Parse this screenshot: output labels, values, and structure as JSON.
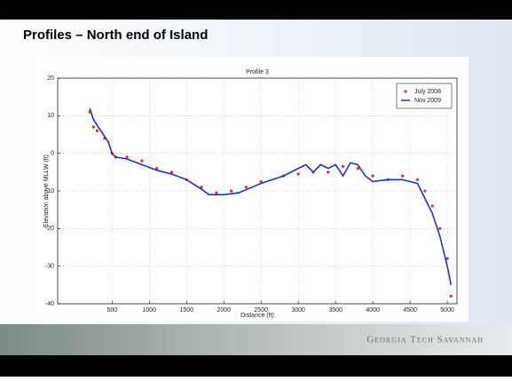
{
  "slide": {
    "title": "Profiles – North end of Island",
    "footer": "Georgia Tech Savannah"
  },
  "chart_data": {
    "type": "line",
    "title": "Profile 3",
    "x_label": "Distance (ft)",
    "y_label": "Elevation above MLLW (ft)",
    "xlim": [
      -230,
      5130
    ],
    "xticks": [
      500,
      1000,
      1500,
      2000,
      2500,
      3000,
      3500,
      4000,
      4500,
      5000
    ],
    "ylim": [
      -40,
      20
    ],
    "yticks": [
      -40,
      -30,
      -20,
      -10,
      0,
      10,
      20
    ],
    "grid": true,
    "legend": "top-right",
    "series": [
      {
        "name": "July 2008",
        "color": "#ff2020",
        "mode": "markers",
        "x": [
          200,
          250,
          300,
          400,
          500,
          550,
          700,
          900,
          1100,
          1300,
          1500,
          1700,
          1900,
          2100,
          2300,
          2500,
          2800,
          3000,
          3200,
          3400,
          3600,
          3800,
          4000,
          4200,
          4400,
          4600,
          4700,
          4800,
          4900,
          5000,
          5050
        ],
        "values": [
          11,
          7,
          6,
          4,
          0,
          -1,
          -1,
          -2,
          -4,
          -5,
          -7,
          -9,
          -10.5,
          -10,
          -9,
          -7.5,
          -6,
          -5.5,
          -5,
          -5,
          -3.5,
          -4,
          -6,
          -7,
          -6,
          -7,
          -10,
          -14,
          -20,
          -28,
          -38
        ]
      },
      {
        "name": "Nov 2009",
        "color": "#1a2fe0",
        "mode": "line",
        "x": [
          200,
          250,
          350,
          450,
          500,
          550,
          700,
          900,
          1100,
          1300,
          1500,
          1700,
          1800,
          2000,
          2200,
          2500,
          2800,
          3000,
          3100,
          3200,
          3300,
          3400,
          3500,
          3600,
          3700,
          3800,
          3900,
          4000,
          4200,
          4400,
          4600,
          4700,
          4800,
          4900,
          5000,
          5050
        ],
        "values": [
          12,
          9,
          6,
          3,
          0,
          -1,
          -1.5,
          -3,
          -4.5,
          -5.5,
          -7,
          -9.5,
          -11,
          -11,
          -10.5,
          -8,
          -6,
          -4,
          -3,
          -5,
          -3,
          -4,
          -3,
          -6,
          -2.5,
          -3,
          -6,
          -7.5,
          -7,
          -7,
          -8,
          -12,
          -16,
          -22,
          -30,
          -35
        ]
      }
    ]
  }
}
